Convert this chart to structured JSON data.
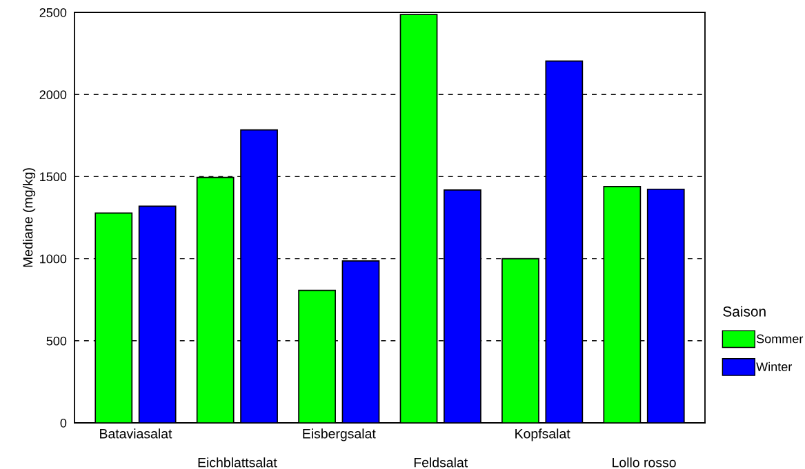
{
  "chart_data": {
    "type": "bar",
    "ylabel": "Mediane (mg/kg)",
    "categories": [
      "Bataviasalat",
      "Eichblattsalat",
      "Eisbergsalat",
      "Feldsalat",
      "Kopfsalat",
      "Lollo rosso"
    ],
    "series": [
      {
        "name": "Sommer",
        "color": "#00ff00",
        "values": [
          1278,
          1495,
          807,
          2487,
          1000,
          1439
        ]
      },
      {
        "name": "Winter",
        "color": "#0000ff",
        "values": [
          1320,
          1784,
          986,
          1418,
          2204,
          1423
        ]
      }
    ],
    "legend_title": "Saison",
    "legend": "right",
    "ylim": [
      0,
      2500
    ],
    "yticks": [
      0,
      500,
      1000,
      1500,
      2000,
      2500
    ],
    "grid": "y"
  }
}
